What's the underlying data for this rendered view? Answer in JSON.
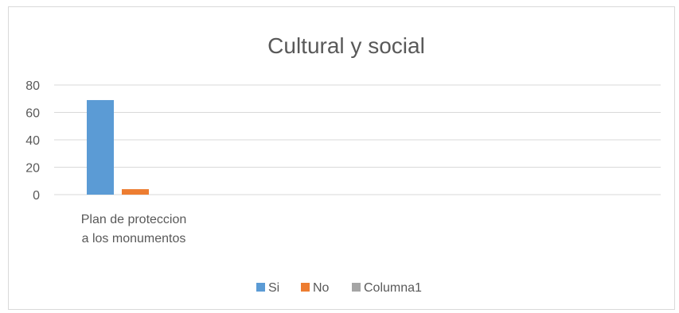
{
  "chart_data": {
    "type": "bar",
    "title": "Cultural y social",
    "categories": [
      "Plan de proteccion a los monumentos"
    ],
    "category_lines": [
      [
        "Plan de proteccion",
        "a los monumentos"
      ]
    ],
    "series": [
      {
        "name": "Si",
        "values": [
          69
        ],
        "color": "#5b9bd5"
      },
      {
        "name": "No",
        "values": [
          4
        ],
        "color": "#ed7d31"
      },
      {
        "name": "Columna1",
        "values": [
          0
        ],
        "color": "#a5a5a5"
      }
    ],
    "ylim": [
      0,
      80
    ],
    "yticks": [
      "0",
      "20",
      "40",
      "60",
      "80"
    ],
    "grid": true,
    "legend": "bottom"
  }
}
